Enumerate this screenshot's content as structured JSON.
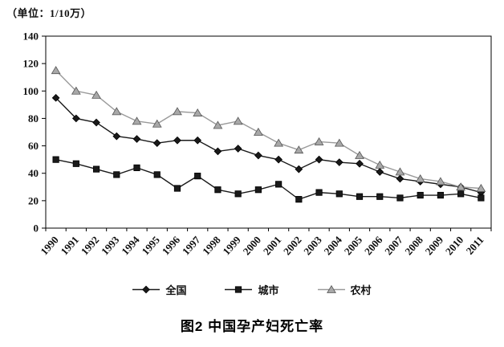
{
  "unit_label": "（单位：1/10万）",
  "figure_title": "图2 中国孕产妇死亡率",
  "chart_data": {
    "type": "line",
    "title": "图2 中国孕产妇死亡率",
    "unit": "1/10万",
    "xlabel": "",
    "ylabel": "",
    "ylim": [
      0,
      140
    ],
    "ytick_step": 20,
    "grid": false,
    "legend_position": "bottom",
    "categories": [
      "1990",
      "1991",
      "1992",
      "1993",
      "1994",
      "1995",
      "1996",
      "1997",
      "1998",
      "1999",
      "2000",
      "2001",
      "2002",
      "2003",
      "2004",
      "2005",
      "2006",
      "2007",
      "2008",
      "2009",
      "2010",
      "2011"
    ],
    "series": [
      {
        "name": "全国",
        "marker": "diamond",
        "line_color": "#1a1a1a",
        "marker_fill": "#1a1a1a",
        "marker_stroke": "#000000",
        "values": [
          95,
          80,
          77,
          67,
          65,
          62,
          64,
          64,
          56,
          58,
          53,
          50,
          43,
          50,
          48,
          47,
          41,
          36,
          34,
          32,
          30,
          26
        ]
      },
      {
        "name": "城市",
        "marker": "square",
        "line_color": "#1a1a1a",
        "marker_fill": "#1a1a1a",
        "marker_stroke": "#000000",
        "values": [
          50,
          47,
          43,
          39,
          44,
          39,
          29,
          38,
          28,
          25,
          28,
          32,
          21,
          26,
          25,
          23,
          23,
          22,
          24,
          24,
          25,
          22
        ]
      },
      {
        "name": "农村",
        "marker": "triangle",
        "line_color": "#9a9a9a",
        "marker_fill": "#a8a8a8",
        "marker_stroke": "#555555",
        "values": [
          115,
          100,
          97,
          85,
          78,
          76,
          85,
          84,
          75,
          78,
          70,
          62,
          57,
          63,
          62,
          53,
          46,
          41,
          36,
          34,
          30,
          29
        ]
      }
    ]
  }
}
